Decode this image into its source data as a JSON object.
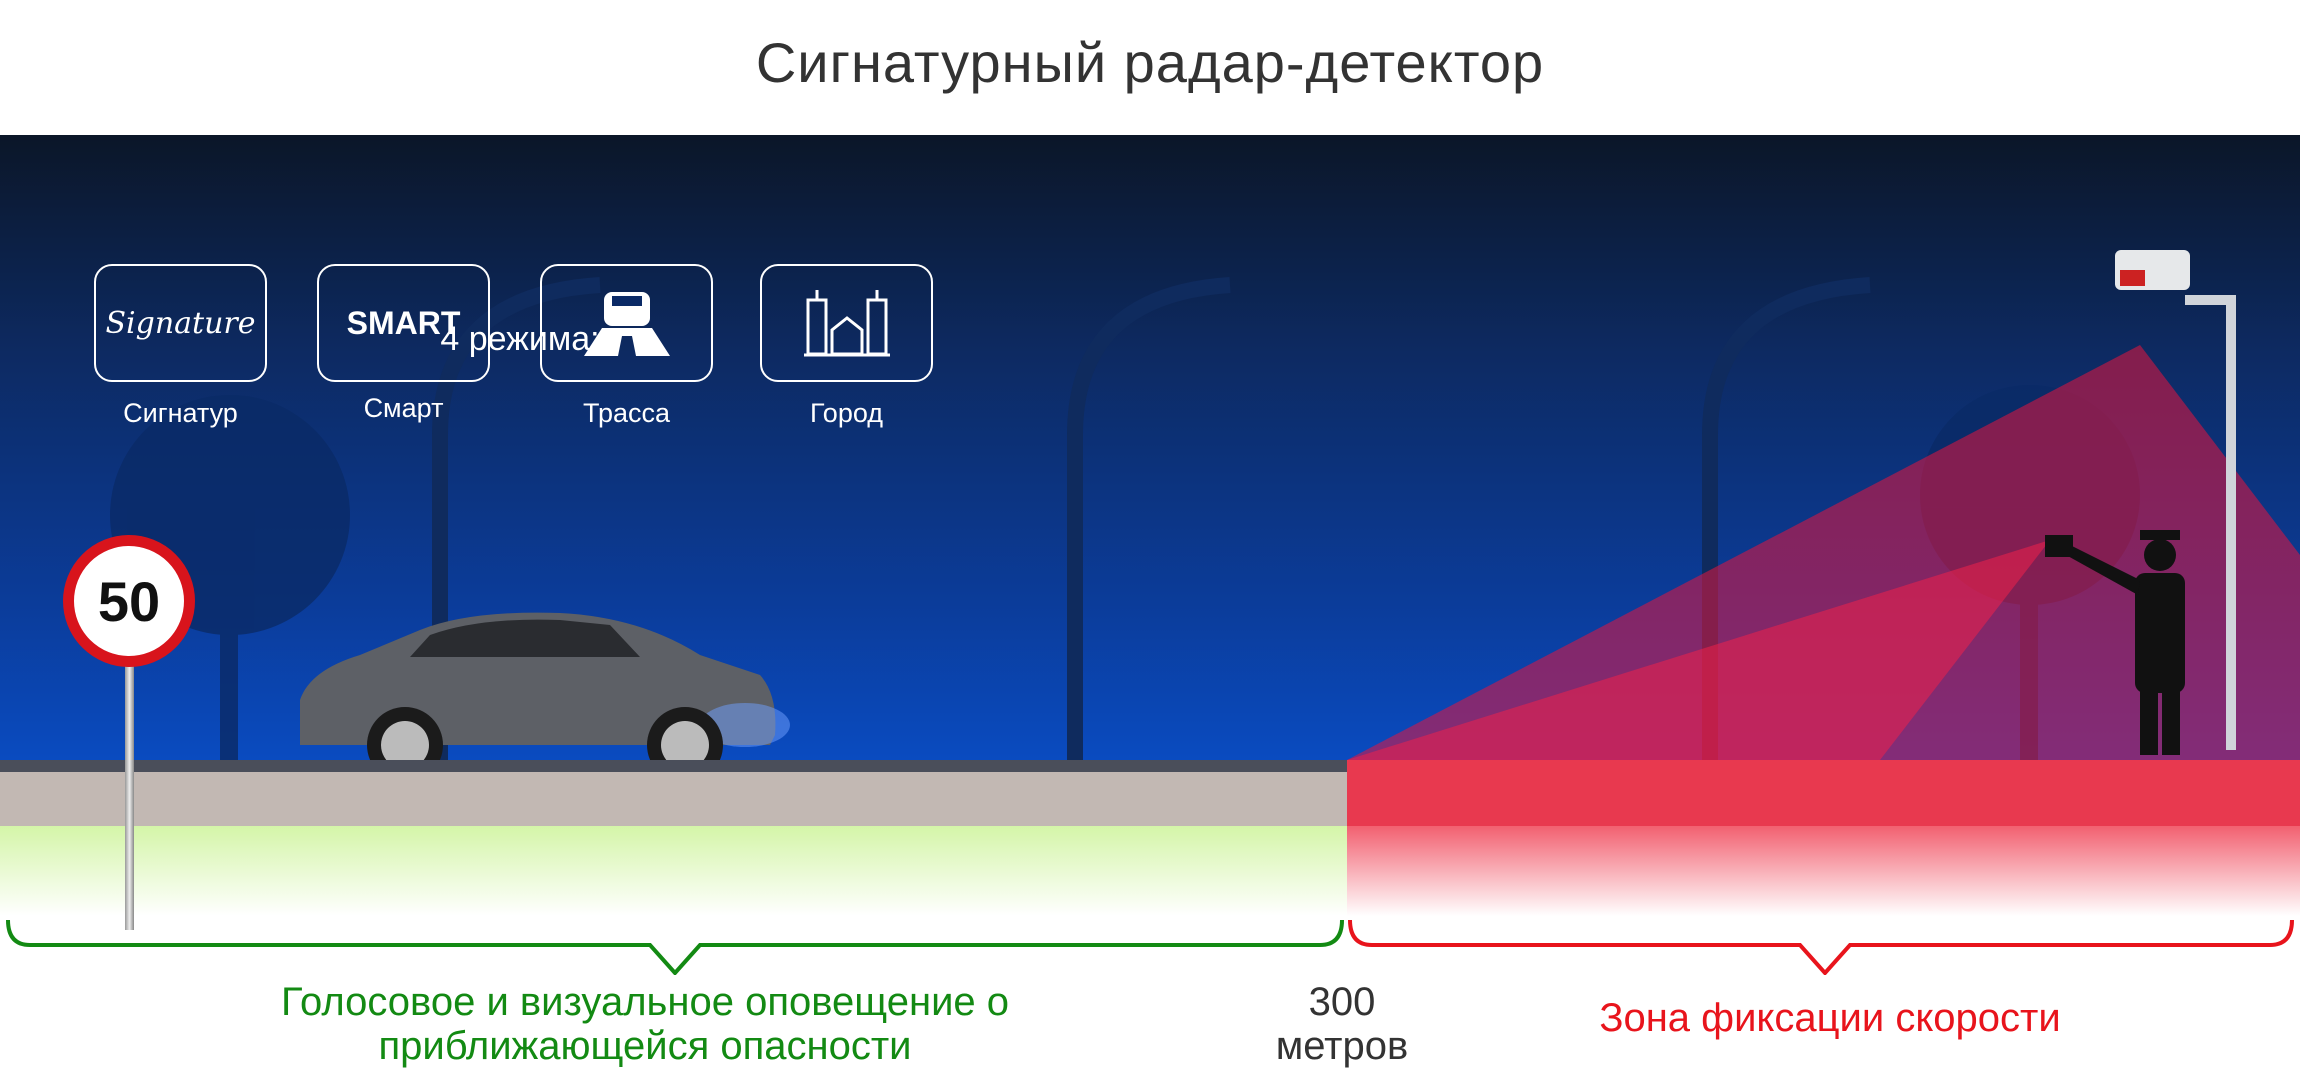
{
  "title": "Сигнатурный радар-детектор",
  "modes": {
    "heading": "4 режима:",
    "items": [
      {
        "label": "Сигнатур",
        "icon": "signature-script-icon",
        "icon_text": "Signature"
      },
      {
        "label": "Смарт",
        "icon": "smart-text-icon",
        "icon_text": "SMART"
      },
      {
        "label": "Трасса",
        "icon": "car-on-road-icon"
      },
      {
        "label": "Город",
        "icon": "city-buildings-icon"
      }
    ]
  },
  "speed_sign": "50",
  "alert_text": [
    "Голосовое и визуальное оповещение о",
    "приближающейся опасности"
  ],
  "distance": [
    "300",
    "метров"
  ],
  "zone_text": "Зона фиксации скорости",
  "colors": {
    "alert": "#138a13",
    "zone": "#e8141c",
    "distance": "#333333",
    "title": "#333333"
  }
}
